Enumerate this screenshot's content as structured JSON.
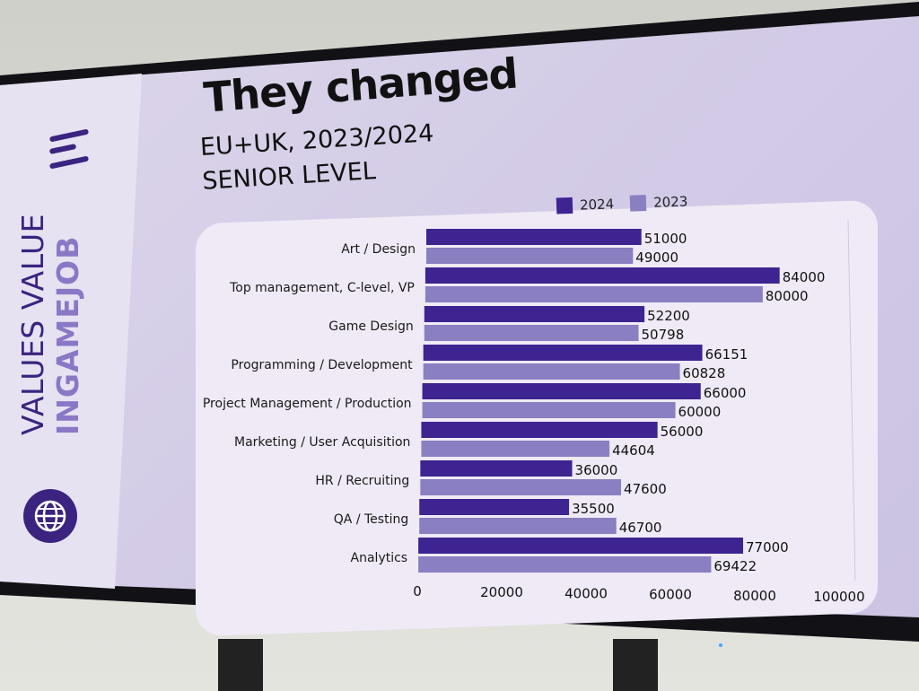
{
  "slide": {
    "title": "They changed",
    "subtitle_line1": "EU+UK, 2023/2024",
    "subtitle_line2": "SENIOR LEVEL",
    "brand_line1": "VALUES VALUE",
    "brand_line2": "INGAMEJOB"
  },
  "colors": {
    "accent": "#3a2480",
    "series_2024": "#3d2490",
    "series_2023": "#8a7fc0"
  },
  "chart_data": {
    "type": "bar",
    "orientation": "horizontal",
    "categories": [
      "Art / Design",
      "Top management, C-level, VP",
      "Game Design",
      "Programming / Development",
      "Project Management / Production",
      "Marketing / User Acquisition",
      "HR / Recruiting",
      "QA / Testing",
      "Analytics"
    ],
    "series": [
      {
        "name": "2024",
        "values": [
          51000,
          84000,
          52200,
          66151,
          66000,
          56000,
          36000,
          35500,
          77000
        ]
      },
      {
        "name": "2023",
        "values": [
          49000,
          80000,
          50798,
          60828,
          60000,
          44604,
          47600,
          46700,
          69422
        ]
      }
    ],
    "xticks": [
      "0",
      "20000",
      "40000",
      "60000",
      "80000",
      "100000"
    ],
    "xlim": [
      0,
      100000
    ],
    "legend": "top-right",
    "grid": "vertical"
  }
}
